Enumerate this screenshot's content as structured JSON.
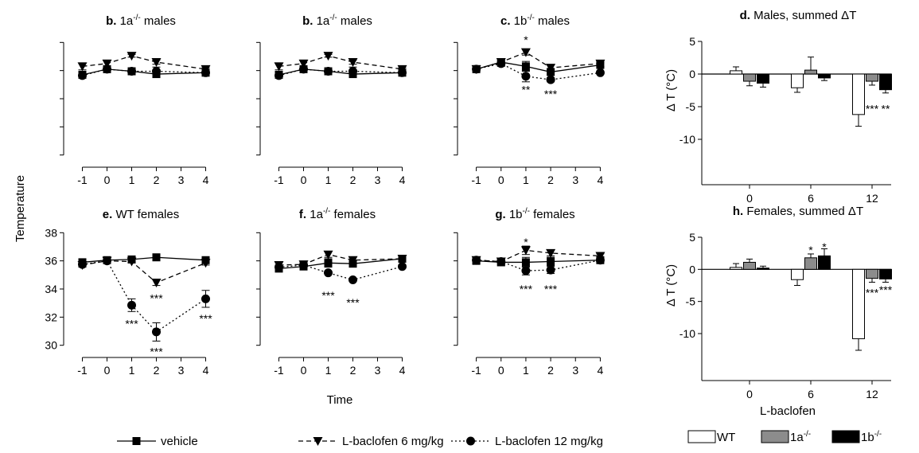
{
  "figure": {
    "y_axis_label": "Temperature",
    "x_axis_label": "Time",
    "bar_x_axis_label": "L-baclofen",
    "line_legend": [
      {
        "label": "vehicle",
        "style": "solid",
        "marker": "square"
      },
      {
        "label": "L-baclofen 6 mg/kg",
        "style": "dashed",
        "marker": "triangle"
      },
      {
        "label": "L-baclofen 12 mg/kg",
        "style": "dotted",
        "marker": "circle"
      }
    ],
    "bar_legend": [
      {
        "label": "WT",
        "fill": "#ffffff"
      },
      {
        "label": "1a",
        "sup": "-/-",
        "fill": "#8c8c8c"
      },
      {
        "label": "1b",
        "sup": "-/-",
        "fill": "#000000"
      }
    ]
  },
  "chart_data": [
    {
      "type": "line",
      "panel_letter": "b.",
      "title": "1a",
      "title_sup": "-/-",
      "title_rest": " males",
      "x": [
        -1,
        0,
        1,
        2,
        4
      ],
      "x_ticks": [
        -1,
        0,
        1,
        2,
        3,
        4
      ],
      "xlim": [
        -1.5,
        4.5
      ],
      "ylim": [
        29.7,
        38.3
      ],
      "y_ticks": [
        30,
        32,
        34,
        36,
        38
      ],
      "y_tick_labels_shown": false,
      "series": [
        {
          "name": "vehicle",
          "values": [
            35.7,
            36.1,
            35.95,
            35.75,
            35.85
          ],
          "errors": [
            0.15,
            0.1,
            0.1,
            0.1,
            0.1
          ]
        },
        {
          "name": "L-baclofen 6 mg/kg",
          "values": [
            36.3,
            36.5,
            37.05,
            36.6,
            36.1
          ],
          "errors": [
            0.25,
            0.25,
            0.1,
            0.15,
            0.1
          ]
        },
        {
          "name": "L-baclofen 12 mg/kg",
          "values": [
            35.65,
            36.1,
            35.95,
            35.95,
            35.85
          ],
          "errors": [
            0.1,
            0.1,
            0.1,
            0.3,
            0.1
          ]
        }
      ],
      "annotations": []
    },
    {
      "type": "line",
      "panel_letter": "b.",
      "title": "1a",
      "title_sup": "-/-",
      "title_rest": " males",
      "x": [
        -1,
        0,
        1,
        2,
        4
      ],
      "x_ticks": [
        -1,
        0,
        1,
        2,
        3,
        4
      ],
      "xlim": [
        -1.5,
        4.5
      ],
      "ylim": [
        29.7,
        38.3
      ],
      "y_ticks": [
        30,
        32,
        34,
        36,
        38
      ],
      "y_tick_labels_shown": false,
      "series": [
        {
          "name": "vehicle",
          "values": [
            35.7,
            36.1,
            35.95,
            35.75,
            35.85
          ],
          "errors": [
            0.15,
            0.1,
            0.1,
            0.1,
            0.1
          ]
        },
        {
          "name": "L-baclofen 6 mg/kg",
          "values": [
            36.3,
            36.5,
            37.05,
            36.6,
            36.1
          ],
          "errors": [
            0.25,
            0.25,
            0.1,
            0.15,
            0.1
          ]
        },
        {
          "name": "L-baclofen 12 mg/kg",
          "values": [
            35.65,
            36.1,
            35.95,
            35.95,
            35.85
          ],
          "errors": [
            0.1,
            0.1,
            0.1,
            0.3,
            0.1
          ]
        }
      ],
      "annotations": []
    },
    {
      "type": "line",
      "panel_letter": "c.",
      "title": "1b",
      "title_sup": "-/-",
      "title_rest": " males",
      "x": [
        -1,
        0,
        1,
        2,
        4
      ],
      "x_ticks": [
        -1,
        0,
        1,
        2,
        3,
        4
      ],
      "xlim": [
        -1.5,
        4.5
      ],
      "ylim": [
        29.7,
        38.3
      ],
      "y_ticks": [
        30,
        32,
        34,
        36,
        38
      ],
      "y_tick_labels_shown": false,
      "series": [
        {
          "name": "vehicle",
          "values": [
            36.1,
            36.6,
            36.3,
            35.9,
            36.4
          ],
          "errors": [
            0.15,
            0.2,
            0.35,
            0.2,
            0.15
          ]
        },
        {
          "name": "L-baclofen 6 mg/kg",
          "values": [
            36.1,
            36.6,
            37.3,
            36.2,
            36.5
          ],
          "errors": [
            0.15,
            0.2,
            0.2,
            0.2,
            0.2
          ]
        },
        {
          "name": "L-baclofen 12 mg/kg",
          "values": [
            36.1,
            36.5,
            35.6,
            35.35,
            35.85
          ],
          "errors": [
            0.15,
            0.2,
            0.4,
            0.15,
            0.1
          ]
        }
      ],
      "annotations": [
        {
          "text": "*",
          "x": 1,
          "y": 38.2
        },
        {
          "text": "**",
          "x": 1,
          "y": 34.65
        },
        {
          "text": "***",
          "x": 2,
          "y": 34.35
        }
      ]
    },
    {
      "type": "bar",
      "panel_letter": "d.",
      "title": "Males, summed ΔT",
      "ylabel": "Δ T (°C)",
      "categories": [
        "0",
        "6",
        "12"
      ],
      "ylim": [
        -14,
        5
      ],
      "y_ticks": [
        -10,
        -5,
        0,
        5
      ],
      "series": [
        {
          "name": "WT",
          "values": [
            0.5,
            -2.1,
            -6.2
          ],
          "errors": [
            0.6,
            0.7,
            1.8
          ]
        },
        {
          "name": "1a-/-",
          "values": [
            -1.1,
            0.6,
            -1.1
          ],
          "errors": [
            0.7,
            2.0,
            0.6
          ]
        },
        {
          "name": "1b-/-",
          "values": [
            -1.4,
            -0.6,
            -2.4
          ],
          "errors": [
            0.6,
            0.4,
            0.5
          ]
        }
      ],
      "annotations": [
        {
          "text": "***",
          "category": "12",
          "series": "1a-/-",
          "y": -5.3
        },
        {
          "text": "**",
          "category": "12",
          "series": "1b-/-",
          "y": -5.3
        }
      ]
    },
    {
      "type": "line",
      "panel_letter": "e.",
      "title": "WT",
      "title_sup": "",
      "title_rest": " females",
      "x": [
        -1,
        0,
        1,
        2,
        4
      ],
      "x_ticks": [
        -1,
        0,
        1,
        2,
        3,
        4
      ],
      "xlim": [
        -1.5,
        4.5
      ],
      "ylim": [
        29.7,
        38.3
      ],
      "y_ticks": [
        30,
        32,
        34,
        36,
        38
      ],
      "y_tick_labels_shown": true,
      "series": [
        {
          "name": "vehicle",
          "values": [
            35.9,
            36.05,
            36.1,
            36.25,
            36.05
          ],
          "errors": [
            0.15,
            0.1,
            0.1,
            0.1,
            0.1
          ]
        },
        {
          "name": "L-baclofen 6 mg/kg",
          "values": [
            35.7,
            36.0,
            35.95,
            34.45,
            35.85
          ],
          "errors": [
            0.15,
            0.1,
            0.1,
            0.2,
            0.15
          ]
        },
        {
          "name": "L-baclofen 12 mg/kg",
          "values": [
            35.75,
            36.0,
            32.85,
            30.95,
            33.3
          ],
          "errors": [
            0.15,
            0.1,
            0.45,
            0.65,
            0.6
          ]
        }
      ],
      "annotations": [
        {
          "text": "***",
          "x": 2,
          "y": 33.35
        },
        {
          "text": "***",
          "x": 1,
          "y": 31.55
        },
        {
          "text": "***",
          "x": 2,
          "y": 29.55
        },
        {
          "text": "***",
          "x": 4,
          "y": 31.9
        }
      ]
    },
    {
      "type": "line",
      "panel_letter": "f.",
      "title": "1a",
      "title_sup": "-/-",
      "title_rest": " females",
      "x": [
        -1,
        0,
        1,
        2,
        4
      ],
      "x_ticks": [
        -1,
        0,
        1,
        2,
        3,
        4
      ],
      "xlim": [
        -1.5,
        4.5
      ],
      "ylim": [
        29.7,
        38.3
      ],
      "y_ticks": [
        30,
        32,
        34,
        36,
        38
      ],
      "y_tick_labels_shown": false,
      "series": [
        {
          "name": "vehicle",
          "values": [
            35.45,
            35.6,
            35.85,
            35.8,
            36.15
          ],
          "errors": [
            0.2,
            0.1,
            0.3,
            0.2,
            0.1
          ]
        },
        {
          "name": "L-baclofen 6 mg/kg",
          "values": [
            35.7,
            35.75,
            36.45,
            36.05,
            36.15
          ],
          "errors": [
            0.15,
            0.15,
            0.2,
            0.2,
            0.1
          ]
        },
        {
          "name": "L-baclofen 12 mg/kg",
          "values": [
            35.55,
            35.7,
            35.15,
            34.65,
            35.6
          ],
          "errors": [
            0.15,
            0.15,
            0.1,
            0.1,
            0.1
          ]
        }
      ],
      "annotations": [
        {
          "text": "***",
          "x": 1,
          "y": 33.55
        },
        {
          "text": "***",
          "x": 2,
          "y": 33.05
        }
      ]
    },
    {
      "type": "line",
      "panel_letter": "g.",
      "title": "1b",
      "title_sup": "-/-",
      "title_rest": " females",
      "x": [
        -1,
        0,
        1,
        2,
        4
      ],
      "x_ticks": [
        -1,
        0,
        1,
        2,
        3,
        4
      ],
      "xlim": [
        -1.5,
        4.5
      ],
      "ylim": [
        29.7,
        38.3
      ],
      "y_ticks": [
        30,
        32,
        34,
        36,
        38
      ],
      "y_tick_labels_shown": false,
      "series": [
        {
          "name": "vehicle",
          "values": [
            36.0,
            35.9,
            35.9,
            35.95,
            36.05
          ],
          "errors": [
            0.2,
            0.25,
            0.35,
            0.3,
            0.15
          ]
        },
        {
          "name": "L-baclofen 6 mg/kg",
          "values": [
            36.05,
            35.95,
            36.75,
            36.55,
            36.35
          ],
          "errors": [
            0.2,
            0.2,
            0.3,
            0.2,
            0.15
          ]
        },
        {
          "name": "L-baclofen 12 mg/kg",
          "values": [
            36.05,
            35.95,
            35.3,
            35.35,
            36.05
          ],
          "errors": [
            0.2,
            0.2,
            0.3,
            0.25,
            0.1
          ]
        }
      ],
      "annotations": [
        {
          "text": "*",
          "x": 1,
          "y": 37.35
        },
        {
          "text": "***",
          "x": 1,
          "y": 34.0
        },
        {
          "text": "***",
          "x": 2,
          "y": 34.0
        }
      ]
    },
    {
      "type": "bar",
      "panel_letter": "h.",
      "title": "Females, summed ΔT",
      "ylabel": "Δ T (°C)",
      "categories": [
        "0",
        "6",
        "12"
      ],
      "ylim": [
        -14,
        5
      ],
      "y_ticks": [
        -10,
        -5,
        0,
        5
      ],
      "series": [
        {
          "name": "WT",
          "values": [
            0.3,
            -1.6,
            -10.8
          ],
          "errors": [
            0.6,
            0.9,
            1.8
          ]
        },
        {
          "name": "1a-/-",
          "values": [
            1.1,
            1.8,
            -1.4
          ],
          "errors": [
            0.5,
            0.6,
            0.6
          ]
        },
        {
          "name": "1b-/-",
          "values": [
            0.2,
            2.1,
            -1.5
          ],
          "errors": [
            0.3,
            1.1,
            0.5
          ]
        }
      ],
      "annotations": [
        {
          "text": "*",
          "category": "6",
          "series": "1a-/-",
          "y": 3.0
        },
        {
          "text": "*",
          "category": "6",
          "series": "1b-/-",
          "y": 3.5
        },
        {
          "text": "***",
          "category": "12",
          "series": "1a-/-",
          "y": -3.6
        },
        {
          "text": "***",
          "category": "12",
          "series": "1b-/-",
          "y": -3.2
        }
      ]
    }
  ]
}
